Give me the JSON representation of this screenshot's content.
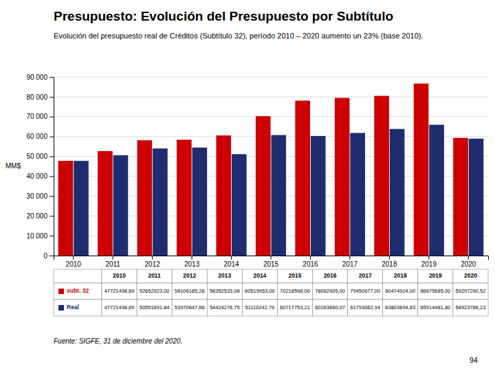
{
  "chart_data": {
    "type": "bar",
    "title": "Presupuesto: Evolución del Presupuesto por Subtítulo",
    "subtitle": "Evolución del presupuesto real de Créditos (Subtítulo 32), período 2010 – 2020 aumento un 23% (base 2010).",
    "y_label": "MM$",
    "categories": [
      2010,
      2011,
      2012,
      2013,
      2014,
      2015,
      2016,
      2017,
      2018,
      2019,
      2020
    ],
    "series": [
      {
        "name": "subt. 32",
        "color": "#cc0000",
        "values": [
          47721.49869,
          52652.923,
          58106.18526,
          58352.53308,
          60519.953,
          70218.598,
          78062.905,
          79450.677,
          80474.924,
          86675.685,
          59297.29052
        ],
        "value_labels": [
          "47721498,69",
          "52652923,00",
          "58106185,26",
          "58352533,08",
          "60519953,00",
          "70218598,00",
          "78062905,00",
          "79450677,00",
          "80474924,00",
          "86675685,00",
          "59297290,52"
        ]
      },
      {
        "name": "Real",
        "color": "#1f2d6e",
        "values": [
          47721.49869,
          50551.89184,
          53970.64766,
          54424.27675,
          51110.24279,
          60717.75321,
          60263.66007,
          61793.08294,
          63803.69483,
          65914.4818,
          58923.78623
        ],
        "value_labels": [
          "47721498,69",
          "50551891,84",
          "53970647,66",
          "54424276,75",
          "51110242,79",
          "60717753,21",
          "60263660,07",
          "61793082,94",
          "63803694,83",
          "65914481,80",
          "58923786,23"
        ]
      }
    ],
    "ylim": [
      0,
      90000
    ],
    "yticks": [
      0,
      {
        "value": 10000,
        "label": "10 000"
      },
      {
        "value": 20000,
        "label": "20 000"
      },
      {
        "value": 30000,
        "label": "30 000"
      },
      {
        "value": 40000,
        "label": "40 000"
      },
      {
        "value": 50000,
        "label": "50 000"
      },
      {
        "value": 60000,
        "label": "60 000"
      },
      {
        "value": 70000,
        "label": "70 000"
      },
      {
        "value": 80000,
        "label": "80 000"
      },
      {
        "value": 90000,
        "label": "90 000"
      }
    ],
    "grid": true,
    "annotations": [
      "Fuente: SIGFE, 31 de diciembre del 2020.",
      "94"
    ]
  }
}
